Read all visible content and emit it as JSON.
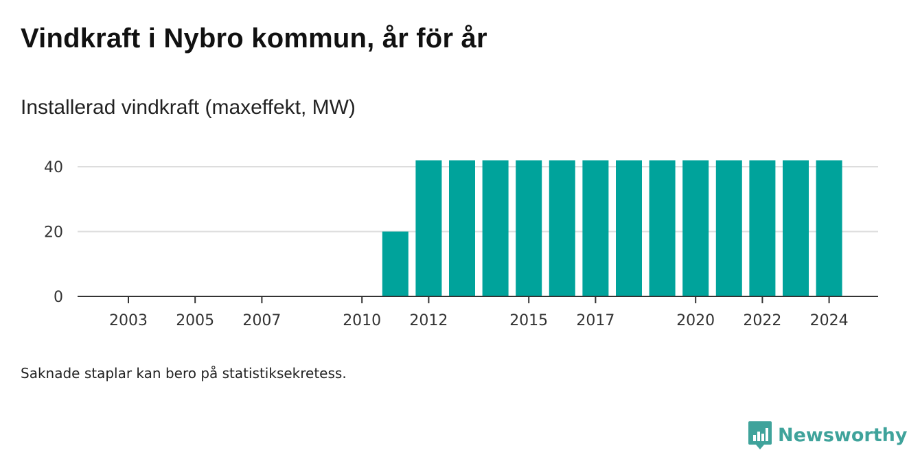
{
  "title": "Vindkraft i Nybro kommun, år för år",
  "subtitle": "Installerad vindkraft (maxeffekt, MW)",
  "note": "Saknade staplar kan bero på statistiksekretess.",
  "brand": {
    "name": "Newsworthy",
    "icon": "newsworthy-logo-icon"
  },
  "colors": {
    "bar": "#00a39b",
    "grid": "#dddddd",
    "axis": "#333333",
    "brand": "#3fa39b"
  },
  "chart_data": {
    "type": "bar",
    "categories": [
      "2003",
      "2004",
      "2005",
      "2006",
      "2007",
      "2008",
      "2009",
      "2010",
      "2011",
      "2012",
      "2013",
      "2014",
      "2015",
      "2016",
      "2017",
      "2018",
      "2019",
      "2020",
      "2021",
      "2022",
      "2023",
      "2024"
    ],
    "values": [
      0,
      0,
      0,
      0,
      0,
      0,
      0,
      0,
      20,
      42,
      42,
      42,
      42,
      42,
      42,
      42,
      42,
      42,
      42,
      42,
      42,
      42
    ],
    "x_tick_labels": [
      "2003",
      "2005",
      "2007",
      "2010",
      "2012",
      "2015",
      "2017",
      "2020",
      "2022",
      "2024"
    ],
    "y_ticks": [
      0,
      20,
      40
    ],
    "ylim": [
      0,
      42
    ],
    "grid": true,
    "legend": "none"
  }
}
